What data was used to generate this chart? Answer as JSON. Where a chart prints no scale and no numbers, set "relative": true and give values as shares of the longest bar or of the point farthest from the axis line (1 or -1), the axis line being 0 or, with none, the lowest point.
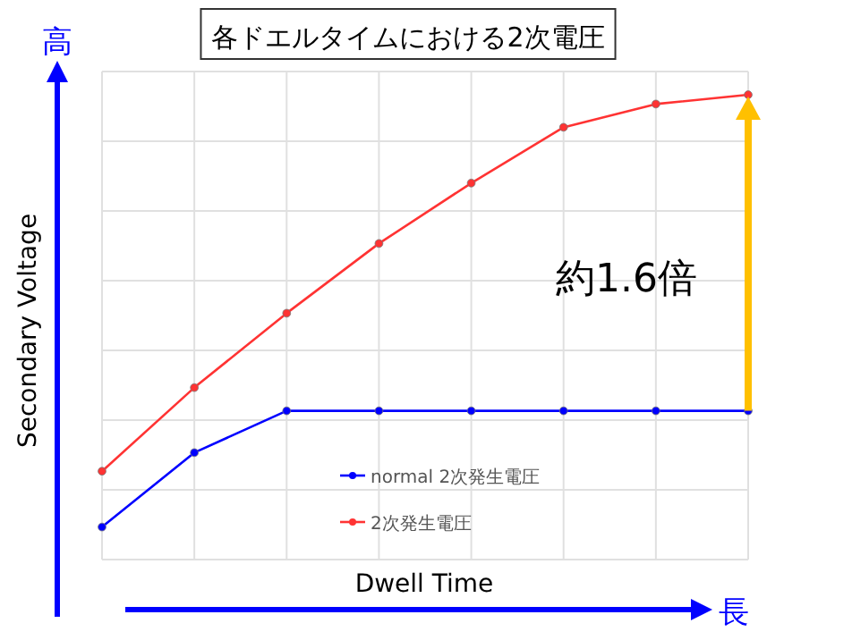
{
  "chart_data": {
    "type": "line",
    "title": "各ドエルタイムにおける2次電圧",
    "xlabel": "Dwell Time",
    "ylabel": "Secondary Voltage",
    "relative": true,
    "grid": true,
    "legend": "bottom",
    "marker": "circle",
    "line_style": "solid",
    "categories": [
      null,
      null,
      null,
      null,
      null,
      null,
      null,
      null
    ],
    "series": [
      {
        "name": "normal 2次発生電圧",
        "color": "#0000ff",
        "values": [
          0.07,
          0.23,
          0.32,
          0.32,
          0.32,
          0.32,
          0.32,
          0.32
        ]
      },
      {
        "name": "2次発生電圧",
        "color": "#ff3333",
        "values": [
          0.19,
          0.37,
          0.53,
          0.68,
          0.81,
          0.93,
          0.98,
          1
        ]
      }
    ],
    "annotations": [
      "高",
      "長",
      "約1.6倍"
    ]
  }
}
